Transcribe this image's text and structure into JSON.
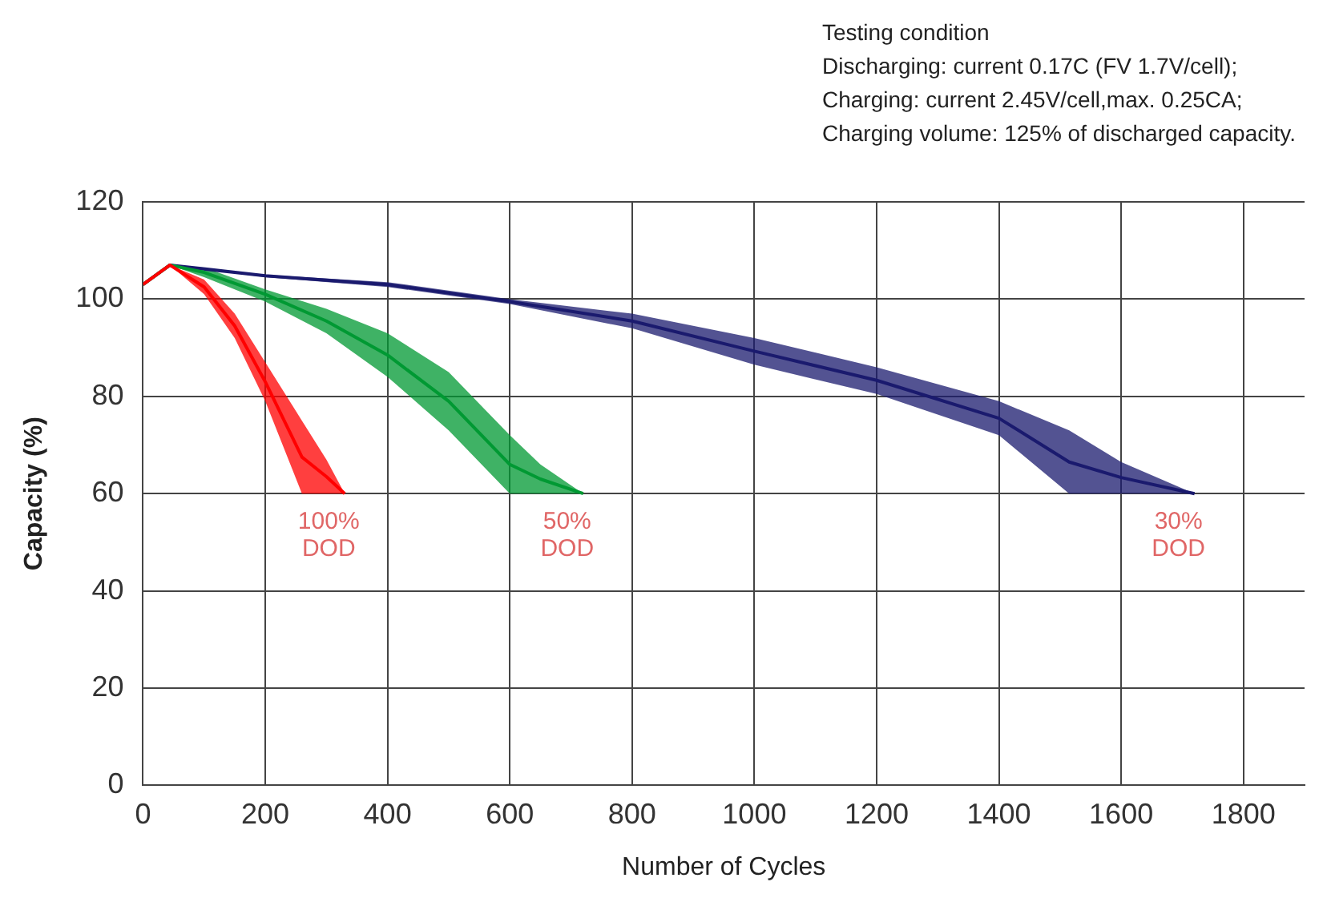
{
  "chart_data": {
    "type": "line",
    "title": "Testing condition",
    "annotations": [
      "Discharging: current 0.17C (FV 1.7V/cell);",
      "Charging: current 2.45V/cell,max. 0.25CA;",
      "Charging volume: 125% of discharged capacity."
    ],
    "xlabel": "Number of Cycles",
    "ylabel": "Capacity (%)",
    "xlim": [
      0,
      1900
    ],
    "xticks": [
      0,
      200,
      400,
      600,
      800,
      1000,
      1200,
      1400,
      1600,
      1800
    ],
    "ylim": [
      0,
      120
    ],
    "yticks": [
      0,
      20,
      40,
      60,
      80,
      100,
      120
    ],
    "grid": true,
    "legend": false,
    "marker": "none",
    "series": [
      {
        "name": "100% DOD",
        "color": "#ff0000",
        "x": [
          0,
          44,
          100,
          150,
          200,
          260,
          300,
          330
        ],
        "values": [
          103,
          107,
          102.5,
          94.5,
          83,
          67.5,
          63.5,
          60
        ],
        "lower": [
          103,
          107,
          101,
          92,
          79,
          60,
          60,
          60
        ],
        "upper": [
          103,
          107,
          104,
          97,
          87,
          75,
          67,
          60
        ]
      },
      {
        "name": "50% DOD",
        "color": "#009933",
        "x": [
          0,
          44,
          100,
          200,
          300,
          400,
          500,
          600,
          650,
          720
        ],
        "values": [
          103,
          107,
          105.5,
          101,
          95.5,
          88.5,
          79,
          66,
          63,
          60
        ],
        "lower": [
          103,
          107,
          104.5,
          99.5,
          93,
          84,
          73,
          60,
          60,
          60
        ],
        "upper": [
          103,
          107,
          106.5,
          102,
          98,
          93,
          85,
          72,
          66,
          60
        ]
      },
      {
        "name": "30% DOD",
        "color": "#1a1a6e",
        "x": [
          0,
          44,
          200,
          400,
          600,
          800,
          1000,
          1200,
          1400,
          1515,
          1600,
          1720
        ],
        "values": [
          103,
          107,
          104.8,
          103,
          99.5,
          95.5,
          89.3,
          83.3,
          75.5,
          66.5,
          63.3,
          60
        ],
        "lower": [
          103,
          107,
          104.5,
          102.5,
          99,
          94,
          86.5,
          80.5,
          72,
          60,
          60,
          60
        ],
        "upper": [
          103,
          107,
          105,
          103.5,
          100,
          97,
          92,
          86,
          79,
          73,
          66.5,
          60
        ]
      }
    ]
  }
}
